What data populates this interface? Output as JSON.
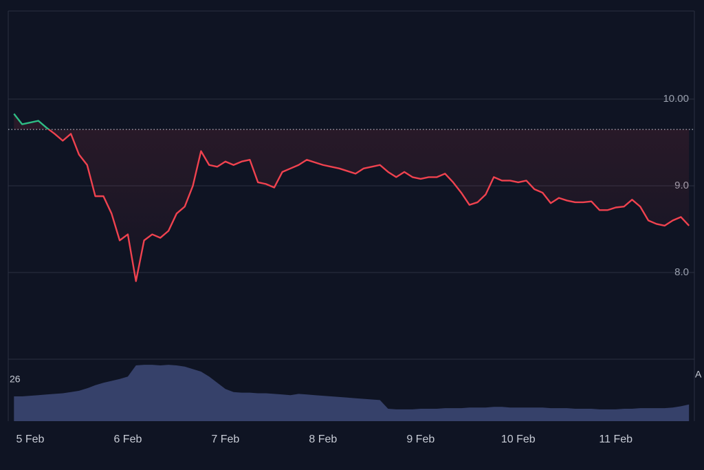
{
  "chart_data": {
    "type": "line",
    "categories": [
      null,
      null,
      "5 Feb",
      null,
      null,
      null,
      null,
      null,
      null,
      null,
      null,
      null,
      null,
      null,
      "6 Feb",
      null,
      null,
      null,
      null,
      null,
      null,
      null,
      null,
      null,
      null,
      null,
      "7 Feb",
      null,
      null,
      null,
      null,
      null,
      null,
      null,
      null,
      null,
      null,
      null,
      "8 Feb",
      null,
      null,
      null,
      null,
      null,
      null,
      null,
      null,
      null,
      null,
      null,
      "9 Feb",
      null,
      null,
      null,
      null,
      null,
      null,
      null,
      null,
      null,
      null,
      null,
      "10 Feb",
      null,
      null,
      null,
      null,
      null,
      null,
      null,
      null,
      null,
      null,
      null,
      "11 Feb",
      null,
      null,
      null,
      null,
      null,
      null,
      null,
      null,
      null
    ],
    "values": [
      9.83,
      9.71,
      9.73,
      9.75,
      9.67,
      9.6,
      9.52,
      9.6,
      9.36,
      9.24,
      8.88,
      8.88,
      8.68,
      8.37,
      8.44,
      7.9,
      8.37,
      8.44,
      8.4,
      8.48,
      8.68,
      8.76,
      9.0,
      9.4,
      9.24,
      9.22,
      9.28,
      9.24,
      9.28,
      9.3,
      9.04,
      9.02,
      8.98,
      9.16,
      9.2,
      9.24,
      9.3,
      9.27,
      9.24,
      9.22,
      9.2,
      9.17,
      9.14,
      9.2,
      9.22,
      9.24,
      9.16,
      9.1,
      9.16,
      9.1,
      9.08,
      9.1,
      9.1,
      9.14,
      9.04,
      8.92,
      8.78,
      8.81,
      8.9,
      9.1,
      9.06,
      9.06,
      9.04,
      9.06,
      8.96,
      8.92,
      8.8,
      8.86,
      8.83,
      8.81,
      8.81,
      8.82,
      8.72,
      8.72,
      8.75,
      8.76,
      8.84,
      8.76,
      8.6,
      8.56,
      8.54,
      8.6,
      8.64,
      8.54
    ],
    "color": "#f0424f",
    "up_color": "#2ebd85",
    "baseline": 9.65,
    "ylim": [
      7,
      11
    ],
    "yticks": [
      {
        "value": 8,
        "label": "8.0"
      },
      {
        "value": 9,
        "label": "9.0"
      },
      {
        "value": 10,
        "label": "10.00"
      }
    ],
    "grid": true,
    "volume": {
      "values": [
        40,
        40,
        41,
        42,
        43,
        44,
        45,
        47,
        49,
        53,
        58,
        62,
        65,
        68,
        72,
        90,
        91,
        91,
        90,
        91,
        90,
        88,
        84,
        80,
        72,
        62,
        52,
        47,
        46,
        46,
        45,
        45,
        44,
        43,
        42,
        44,
        43,
        42,
        41,
        40,
        39,
        38,
        37,
        36,
        35,
        34,
        20,
        19,
        19,
        19,
        20,
        20,
        20,
        21,
        21,
        21,
        22,
        22,
        22,
        23,
        23,
        22,
        22,
        22,
        22,
        22,
        21,
        21,
        21,
        20,
        20,
        20,
        19,
        19,
        19,
        20,
        20,
        21,
        21,
        21,
        21,
        22,
        24,
        27
      ],
      "color": "#36416a",
      "ylim": [
        0,
        100
      ]
    },
    "annotations": [
      "26",
      "A"
    ]
  }
}
